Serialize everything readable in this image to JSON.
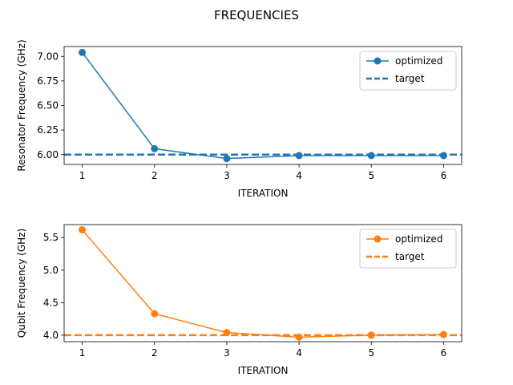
{
  "chart_data": {
    "type": "line",
    "title": "FREQUENCIES",
    "panels": [
      {
        "xlabel": "ITERATION",
        "ylabel": "Resonator Frequency (GHz)",
        "x": [
          1,
          2,
          3,
          4,
          5,
          6
        ],
        "xlim": [
          0.75,
          6.25
        ],
        "ylim": [
          5.9,
          7.1
        ],
        "yticks": [
          "6.00",
          "6.25",
          "6.50",
          "6.75",
          "7.00"
        ],
        "series": [
          {
            "name": "optimized",
            "values": [
              7.04,
              6.06,
              5.96,
              5.99,
              5.99,
              5.99
            ],
            "color": "#1f77b4",
            "style": "solid-marker"
          },
          {
            "name": "target",
            "value": 6.0,
            "color": "#1f77b4",
            "style": "dashed"
          }
        ],
        "legend": "top-right"
      },
      {
        "xlabel": "ITERATION",
        "ylabel": "Qubit Frequency (GHz)",
        "x": [
          1,
          2,
          3,
          4,
          5,
          6
        ],
        "xlim": [
          0.75,
          6.25
        ],
        "ylim": [
          3.9,
          5.7
        ],
        "yticks": [
          "4.0",
          "4.5",
          "5.0",
          "5.5"
        ],
        "series": [
          {
            "name": "optimized",
            "values": [
              5.62,
              4.33,
              4.04,
              3.97,
              4.0,
              4.01
            ],
            "color": "#ff7f0e",
            "style": "solid-marker"
          },
          {
            "name": "target",
            "value": 4.0,
            "color": "#ff7f0e",
            "style": "dashed"
          }
        ],
        "legend": "top-right"
      }
    ]
  }
}
